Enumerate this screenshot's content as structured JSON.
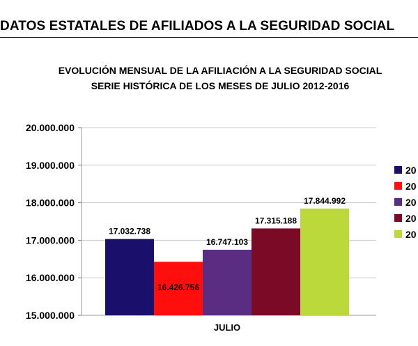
{
  "header": {
    "title": "DATOS ESTATALES DE  AFILIADOS A LA SEGURIDAD SOCIAL"
  },
  "chart_data": {
    "type": "bar",
    "title": "EVOLUCIÓN MENSUAL DE LA AFILIACIÓN A LA SEGURIDAD SOCIAL",
    "subtitle": "SERIE HISTÓRICA DE LOS MESES DE JULIO 2012-2016",
    "categories": [
      "JULIO"
    ],
    "series": [
      {
        "name": "20",
        "color": "#1a0f6b",
        "values": [
          17032738
        ],
        "value_label": "17.032.738"
      },
      {
        "name": "20",
        "color": "#ff0e0e",
        "values": [
          16426756
        ],
        "value_label": "16.426.756"
      },
      {
        "name": "20",
        "color": "#5a2d82",
        "values": [
          16747103
        ],
        "value_label": "16.747.103"
      },
      {
        "name": "20",
        "color": "#7a0a26",
        "values": [
          17315188
        ],
        "value_label": "17.315.188"
      },
      {
        "name": "20",
        "color": "#bcd93c",
        "values": [
          17844992
        ],
        "value_label": "17.844.992"
      }
    ],
    "ylim": [
      15000000,
      20000000
    ],
    "yticks": [
      15000000,
      16000000,
      17000000,
      18000000,
      19000000,
      20000000
    ],
    "ytick_labels": [
      "15.000.000",
      "16.000.000",
      "17.000.000",
      "18.000.000",
      "19.000.000",
      "20.000.000"
    ],
    "grid": true,
    "legend_position": "right",
    "xlabel": "",
    "ylabel": ""
  }
}
